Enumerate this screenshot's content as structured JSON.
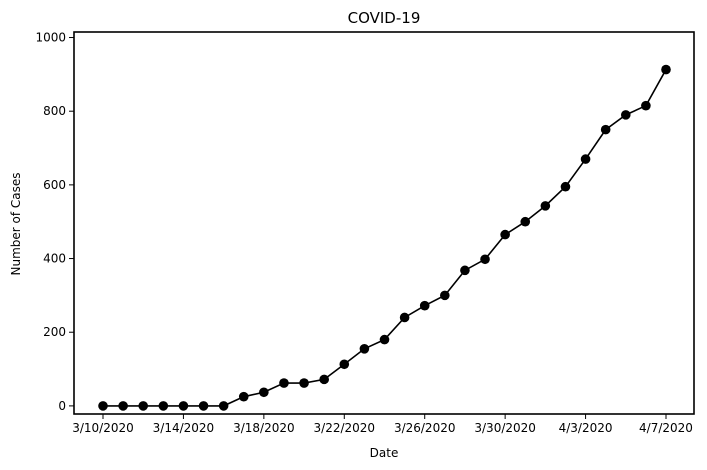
{
  "chart_data": {
    "type": "line",
    "title": "COVID-19",
    "xlabel": "Date",
    "ylabel": "Number of Cases",
    "x": [
      "3/10/2020",
      "3/11/2020",
      "3/12/2020",
      "3/13/2020",
      "3/14/2020",
      "3/15/2020",
      "3/16/2020",
      "3/17/2020",
      "3/18/2020",
      "3/19/2020",
      "3/20/2020",
      "3/21/2020",
      "3/22/2020",
      "3/23/2020",
      "3/24/2020",
      "3/25/2020",
      "3/26/2020",
      "3/27/2020",
      "3/28/2020",
      "3/29/2020",
      "3/30/2020",
      "3/31/2020",
      "4/1/2020",
      "4/2/2020",
      "4/3/2020",
      "4/4/2020",
      "4/5/2020",
      "4/6/2020",
      "4/7/2020"
    ],
    "series": [
      {
        "values": [
          0,
          0,
          0,
          0,
          0,
          0,
          0,
          25,
          37,
          62,
          62,
          72,
          113,
          155,
          180,
          240,
          272,
          300,
          368,
          398,
          465,
          500,
          543,
          595,
          670,
          750,
          790,
          815,
          913
        ],
        "color": "#000000"
      }
    ],
    "x_ticks": [
      "3/10/2020",
      "3/14/2020",
      "3/18/2020",
      "3/22/2020",
      "3/26/2020",
      "3/30/2020",
      "4/3/2020",
      "4/7/2020"
    ],
    "y_ticks": [
      0,
      200,
      400,
      600,
      800,
      1000
    ],
    "ylim": [
      -22,
      1015
    ],
    "grid": false,
    "legend": "none"
  }
}
